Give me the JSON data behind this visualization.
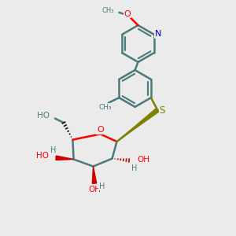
{
  "bg_color": "#ebebeb",
  "bond_color": "#4a7a7a",
  "bond_width": 1.8,
  "o_color": "#ff0000",
  "n_color": "#0000cc",
  "s_color": "#808000",
  "figsize": [
    3.0,
    3.0
  ],
  "dpi": 100,
  "xlim": [
    0,
    10
  ],
  "ylim": [
    0,
    10
  ]
}
